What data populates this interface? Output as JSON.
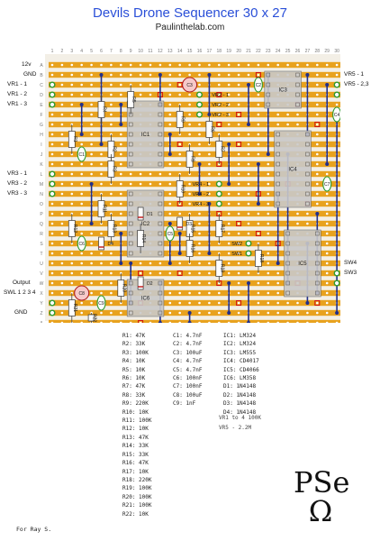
{
  "title": "Devils Drone Sequencer 30 x 27",
  "subtitle": "Paulinthelab.com",
  "columns": [
    "1",
    "2",
    "3",
    "4",
    "5",
    "6",
    "7",
    "8",
    "9",
    "10",
    "11",
    "12",
    "13",
    "14",
    "15",
    "16",
    "17",
    "18",
    "19",
    "20",
    "21",
    "22",
    "23",
    "24",
    "25",
    "26",
    "27",
    "28",
    "29",
    "30"
  ],
  "rows": [
    "A",
    "B",
    "C",
    "D",
    "E",
    "F",
    "G",
    "H",
    "I",
    "J",
    "K",
    "L",
    "M",
    "N",
    "O",
    "P",
    "Q",
    "R",
    "S",
    "T",
    "U",
    "V",
    "W",
    "X",
    "Y",
    "Z",
    "A"
  ],
  "left_labels": [
    "12v",
    "GND",
    "VR1 - 1",
    "VR1 - 2",
    "VR1 - 3",
    "VR3 - 1",
    "VR3 - 2",
    "VR3 - 3",
    "Output",
    "SWL 1 2 3 4",
    "GND"
  ],
  "right_labels": [
    "VR5 - 1",
    "VR5 - 2,3",
    "SW4",
    "SW3"
  ],
  "inboard_labels": [
    "VR2 - 1",
    "VR2 - 2",
    "VR2 - 3",
    "VR4 - 1",
    "VR4 - 2",
    "VR4 - 3",
    "SW2",
    "SW1"
  ],
  "ics": [
    "IC1",
    "IC2",
    "IC3",
    "IC4",
    "IC5",
    "IC6"
  ],
  "resistor_labels": [
    "R1",
    "R2",
    "R3",
    "R4",
    "R5",
    "R6",
    "R7",
    "R8",
    "R9",
    "R10",
    "R11",
    "R12",
    "R13",
    "R14",
    "R15",
    "R16",
    "R17",
    "R18",
    "R19",
    "R20",
    "R21",
    "R22"
  ],
  "cap_labels": [
    "C1",
    "C2",
    "C3",
    "C4",
    "C5",
    "C6",
    "C7",
    "C8",
    "C9"
  ],
  "diode_labels": [
    "D1",
    "D2",
    "D3",
    "D4"
  ],
  "bom": {
    "resistors": [
      "R1: 47K",
      "R2: 33K",
      "R3: 100K",
      "R4: 10K",
      "R5: 10K",
      "R6: 10K",
      "R7: 47K",
      "R8: 33K",
      "R9: 220K",
      "R10: 10K",
      "R11: 100K",
      "R12: 10K",
      "R13: 47K",
      "R14: 33K",
      "R15: 33K",
      "R16: 47K",
      "R17: 10K",
      "R18: 220K",
      "R19: 100K",
      "R20: 100K",
      "R21: 100K",
      "R22: 10K"
    ],
    "capacitors": [
      "C1: 4.7nF",
      "C2: 4.7nF",
      "C3: 100uF",
      "C4: 4.7nF",
      "C5: 4.7nF",
      "C6: 100nF",
      "C7: 100nF",
      "C8: 100uF",
      "C9: 1nF"
    ],
    "semis": [
      "IC1: LM324",
      "IC2: LM324",
      "IC3: LM555",
      "IC4: CD4017",
      "IC5: CD4066",
      "IC6: LM358",
      "D1: 1N4148",
      "D2: 1N4148",
      "D3: 1N4148",
      "D4: 1N4148"
    ]
  },
  "notes": [
    "VR1 to 4 100K",
    "VR5 - 2.2M"
  ],
  "credit": "For Ray S.",
  "logo": {
    "line1": "PSe",
    "line2": "Ω"
  },
  "colors": {
    "strip": "#e8a21e",
    "board": "#f3efe6",
    "hole": "#ffffff",
    "wire": "#1f2e8c",
    "ic": "#c9c9c9",
    "title": "#2a4fd8",
    "cut": "#d01010",
    "pad": "#2e9a2e"
  }
}
